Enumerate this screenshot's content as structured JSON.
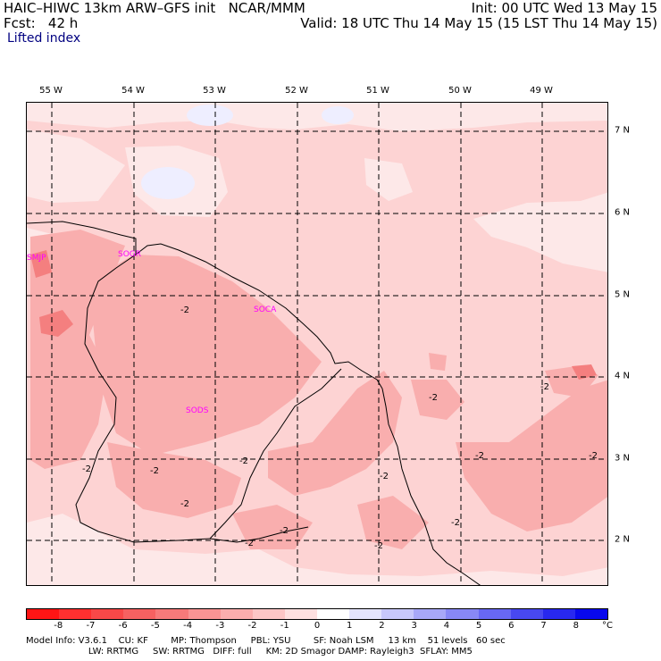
{
  "header": {
    "title": "HAIC–HIWC 13km ARW–GFS init   NCAR/MMM",
    "fcst": "Fcst:   42 h",
    "init": "Init: 00 UTC Wed 13 May 15",
    "valid": "Valid: 18 UTC Thu 14 May 15 (15 LST Thu 14 May 15)",
    "field": "Lifted index"
  },
  "axes": {
    "lon_labels": [
      "55 W",
      "54 W",
      "53 W",
      "52 W",
      "51 W",
      "50 W",
      "49 W"
    ],
    "lat_labels": [
      "7 N",
      "6 N",
      "5 N",
      "4 N",
      "3 N",
      "2 N"
    ]
  },
  "stations": [
    "SMJP",
    "SOGR",
    "SOCA",
    "SODS"
  ],
  "contour_label": "-2",
  "colors": {
    "background_pink": "#fdd3d3",
    "light_pink": "#fde8e8",
    "medium_pink": "#f9aeae",
    "light_blue": "#eeeeff",
    "station": "#ff00ff"
  },
  "colorbar": {
    "colors": [
      "#ff1515",
      "#ff3030",
      "#f84848",
      "#f66161",
      "#f77a7a",
      "#f99494",
      "#fbadad",
      "#fdc6c6",
      "#fee0e0",
      "#ffffff",
      "#e4e4fd",
      "#c8c8fb",
      "#a8a8f8",
      "#8888f6",
      "#6868f4",
      "#4848f1",
      "#2828ef",
      "#0808ed"
    ],
    "labels": [
      "-8",
      "-7",
      "-6",
      "-5",
      "-4",
      "-3",
      "-2",
      "-1",
      "0",
      "1",
      "2",
      "3",
      "4",
      "5",
      "6",
      "7",
      "8"
    ],
    "unit": "°C"
  },
  "footer": {
    "line1": "Model Info: V3.6.1    CU: KF        MP: Thompson     PBL: YSU        SF: Noah LSM     13 km    51 levels   60 sec",
    "line2": "                      LW: RRTMG     SW: RRTMG   DIFF: full     KM: 2D Smagor DAMP: Rayleigh3  SFLAY: MM5"
  }
}
